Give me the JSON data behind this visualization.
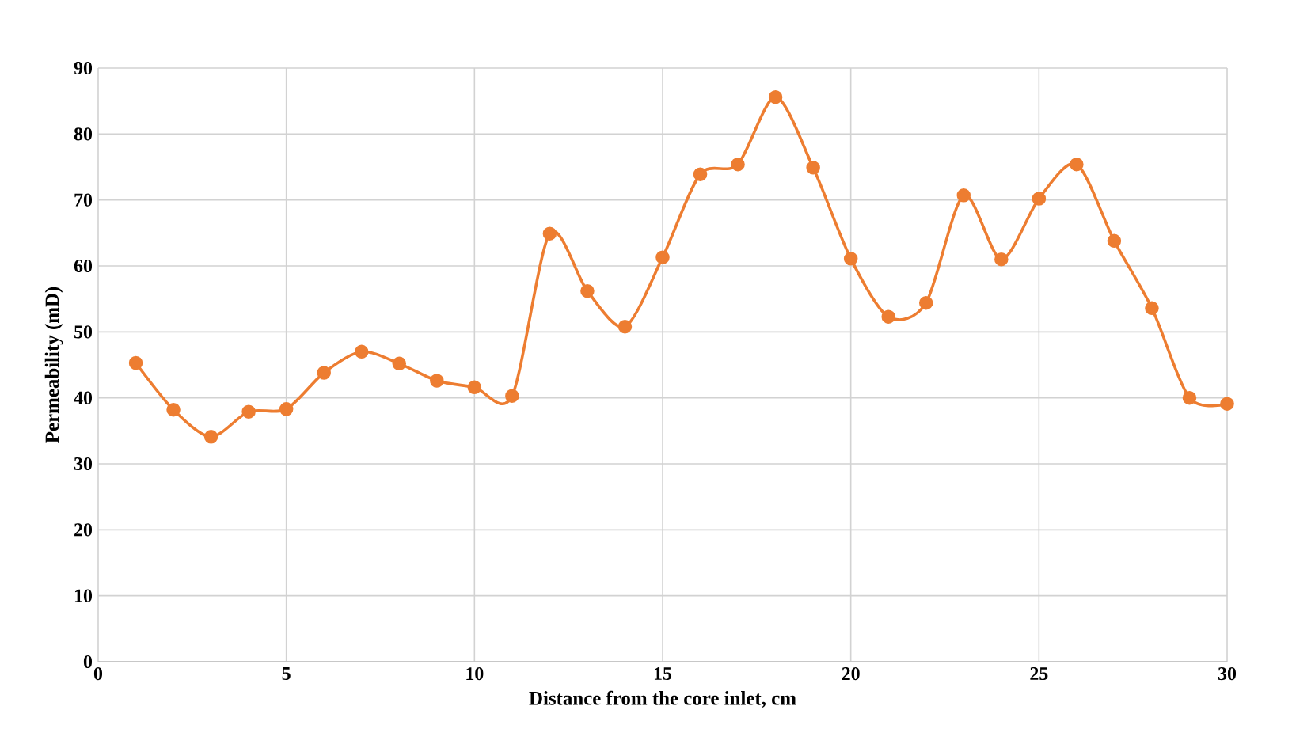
{
  "chart_data": {
    "type": "line",
    "xlabel": "Distance from the core inlet, cm",
    "ylabel": "Permeability (mD)",
    "x": [
      1,
      2,
      3,
      4,
      5,
      6,
      7,
      8,
      9,
      10,
      11,
      12,
      13,
      14,
      15,
      16,
      17,
      18,
      19,
      20,
      21,
      22,
      23,
      24,
      25,
      26,
      27,
      28,
      29,
      30
    ],
    "series": [
      {
        "color": "#ed7d31",
        "values": [
          45.3,
          38.2,
          34.1,
          37.9,
          38.3,
          43.8,
          47.0,
          45.2,
          42.6,
          41.6,
          40.3,
          64.9,
          56.2,
          50.8,
          61.3,
          73.9,
          75.4,
          85.6,
          74.9,
          61.1,
          52.3,
          54.4,
          70.7,
          61.0,
          70.2,
          75.4,
          63.8,
          53.6,
          40.0,
          39.1
        ]
      }
    ],
    "xlim": [
      0,
      30
    ],
    "ylim": [
      0,
      90
    ],
    "xticks": [
      0,
      5,
      10,
      15,
      20,
      25,
      30
    ],
    "yticks": [
      0,
      10,
      20,
      30,
      40,
      50,
      60,
      70,
      80,
      90
    ],
    "grid": true,
    "marker": "circle",
    "line_style": "solid"
  }
}
